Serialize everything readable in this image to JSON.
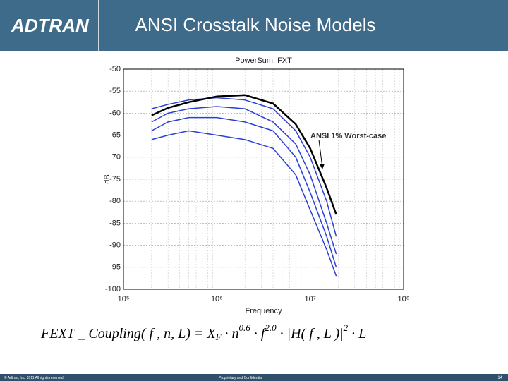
{
  "header": {
    "logo": "ADTRAN",
    "title": "ANSI Crosstalk Noise Models"
  },
  "chart_data": {
    "type": "line",
    "title": "PowerSum: FXT",
    "xlabel": "Frequency",
    "ylabel": "dB",
    "annotation": "ANSI 1% Worst-case",
    "xscale": "log",
    "grid": true,
    "xlim": [
      100000,
      100000000
    ],
    "xticks": [
      {
        "value": 100000,
        "label": "10⁵"
      },
      {
        "value": 1000000,
        "label": "10⁶"
      },
      {
        "value": 10000000,
        "label": "10⁷"
      },
      {
        "value": 100000000,
        "label": "10⁸"
      }
    ],
    "ylim": [
      -100,
      -50
    ],
    "yticks": [
      -50,
      -55,
      -60,
      -65,
      -70,
      -75,
      -80,
      -85,
      -90,
      -95,
      -100
    ],
    "x": [
      200000,
      300000,
      500000,
      1000000,
      2000000,
      4000000,
      7000000,
      10000000,
      15000000,
      19000000
    ],
    "series": [
      {
        "color": "#2a3fd6",
        "values": [
          -59,
          -58,
          -57,
          -56.5,
          -57,
          -59,
          -64,
          -70,
          -80,
          -88
        ]
      },
      {
        "color": "#2a3fd6",
        "values": [
          -62,
          -60,
          -59,
          -58.5,
          -59,
          -62,
          -67,
          -74,
          -85,
          -92
        ]
      },
      {
        "color": "#2a3fd6",
        "values": [
          -64,
          -62,
          -61,
          -61,
          -62,
          -64,
          -70,
          -78,
          -88,
          -95
        ]
      },
      {
        "color": "#2a3fd6",
        "values": [
          -66,
          -65,
          -64,
          -65,
          -66,
          -68,
          -74,
          -82,
          -91,
          -97
        ]
      },
      {
        "color": "#000000",
        "values": [
          -60.5,
          -58.8,
          -57.5,
          -56.2,
          -55.9,
          -57.8,
          -62.5,
          -68,
          -77,
          -83
        ]
      }
    ]
  },
  "formula": [
    {
      "text": "FEXT _ Coupling( f , n, L) = X"
    },
    {
      "text": "F",
      "pos": "sub"
    },
    {
      "text": " · n"
    },
    {
      "text": "0.6",
      "pos": "sup"
    },
    {
      "text": " · f"
    },
    {
      "text": "2.0",
      "pos": "sup"
    },
    {
      "text": " · |H( f , L )|"
    },
    {
      "text": "2",
      "pos": "sup"
    },
    {
      "text": " · L"
    }
  ],
  "footer": {
    "copyright": "© Adtran, Inc. 2011 All rights reserved",
    "confidential": "Proprietary and Confidential",
    "page": "14"
  }
}
